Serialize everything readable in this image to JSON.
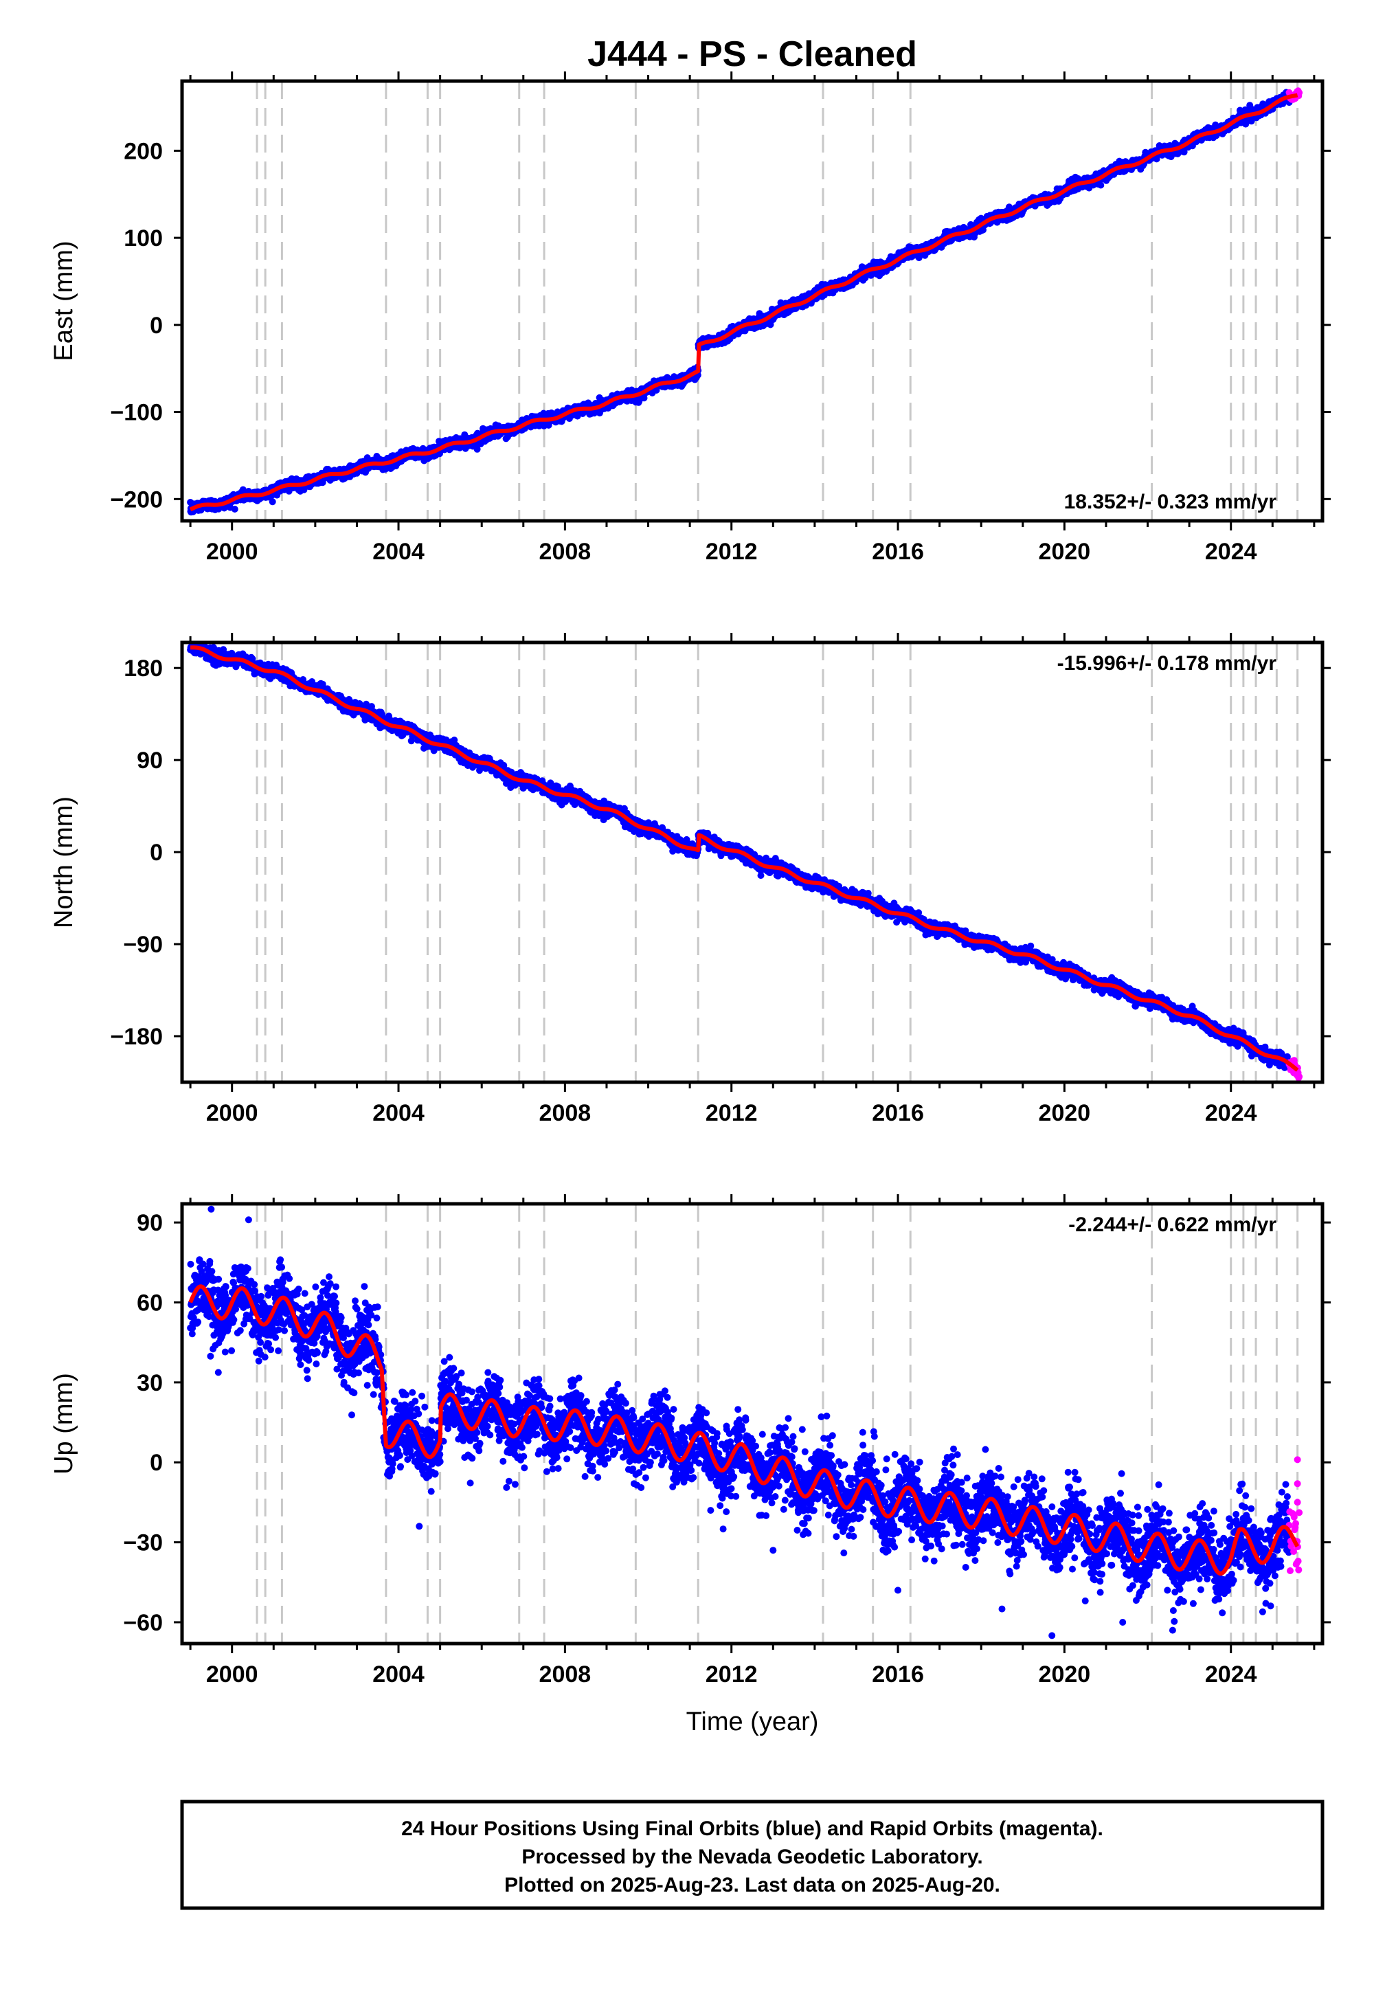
{
  "title": "J444  - PS - Cleaned",
  "colors": {
    "final": "#0000ff",
    "rapid": "#ff00ff",
    "model": "#ff0000",
    "event": "#c8c8c8"
  },
  "chart_data": {
    "type": "scatter",
    "xlim": [
      1998.8,
      2026.2
    ],
    "x_ticks": [
      2000,
      2004,
      2008,
      2012,
      2016,
      2020,
      2024
    ],
    "xlabel": "Time (year)",
    "event_lines": [
      2000.6,
      2000.8,
      2001.2,
      2003.7,
      2004.7,
      2005.0,
      2006.9,
      2007.5,
      2009.7,
      2011.2,
      2014.2,
      2015.4,
      2016.3,
      2022.1,
      2024.0,
      2024.3,
      2024.6,
      2025.1,
      2025.6
    ],
    "panels": [
      {
        "name": "East",
        "ylabel": "East (mm)",
        "ylim": [
          -225,
          280
        ],
        "y_ticks": [
          -200,
          -100,
          0,
          100,
          200
        ],
        "rate_label": "18.352+/- 0.323 mm/yr",
        "rate_position": "bottom-right",
        "trend": [
          [
            1999.0,
            -212
          ],
          [
            2001.0,
            -190
          ],
          [
            2003.0,
            -165
          ],
          [
            2005.0,
            -142
          ],
          [
            2007.0,
            -115
          ],
          [
            2009.0,
            -90
          ],
          [
            2011.2,
            -55
          ],
          [
            2011.2,
            -25
          ],
          [
            2013.0,
            12
          ],
          [
            2015.0,
            55
          ],
          [
            2017.0,
            95
          ],
          [
            2019.0,
            135
          ],
          [
            2021.0,
            173
          ],
          [
            2023.0,
            210
          ],
          [
            2025.6,
            265
          ]
        ],
        "scatter_sigma": 3,
        "spikes": [],
        "wiggle": 2,
        "rapid_range": [
          2025.4,
          2025.65
        ]
      },
      {
        "name": "North",
        "ylabel": "North (mm)",
        "ylim": [
          -225,
          205
        ],
        "y_ticks": [
          -180,
          -90,
          0,
          90,
          180
        ],
        "rate_label": "-15.996+/- 0.178 mm/yr",
        "rate_position": "top-right",
        "trend": [
          [
            1999.0,
            200
          ],
          [
            2001.0,
            177
          ],
          [
            2003.0,
            140
          ],
          [
            2005.0,
            105
          ],
          [
            2007.0,
            70
          ],
          [
            2009.0,
            42
          ],
          [
            2011.2,
            0
          ],
          [
            2011.2,
            15
          ],
          [
            2013.0,
            -15
          ],
          [
            2015.0,
            -45
          ],
          [
            2017.0,
            -75
          ],
          [
            2019.0,
            -100
          ],
          [
            2021.0,
            -130
          ],
          [
            2023.0,
            -160
          ],
          [
            2025.6,
            -212
          ]
        ],
        "scatter_sigma": 3,
        "spikes": [],
        "wiggle": 2,
        "rapid_range": [
          2025.4,
          2025.65
        ]
      },
      {
        "name": "Up",
        "ylabel": "Up (mm)",
        "ylim": [
          -68,
          97
        ],
        "y_ticks": [
          -60,
          -30,
          0,
          30,
          60,
          90
        ],
        "rate_label": "-2.244+/- 0.622 mm/yr",
        "rate_position": "top-right",
        "trend": [
          [
            1999.0,
            60
          ],
          [
            2000.0,
            60
          ],
          [
            2001.0,
            57
          ],
          [
            2002.0,
            52
          ],
          [
            2003.0,
            44
          ],
          [
            2003.6,
            38
          ],
          [
            2003.7,
            12
          ],
          [
            2004.5,
            8
          ],
          [
            2005.0,
            8
          ],
          [
            2005.0,
            20
          ],
          [
            2006.0,
            18
          ],
          [
            2007.0,
            15
          ],
          [
            2008.0,
            14
          ],
          [
            2009.0,
            12
          ],
          [
            2010.0,
            9
          ],
          [
            2011.0,
            6
          ],
          [
            2012.0,
            2
          ],
          [
            2013.0,
            -3
          ],
          [
            2014.0,
            -8
          ],
          [
            2015.0,
            -12
          ],
          [
            2016.0,
            -15
          ],
          [
            2017.0,
            -17
          ],
          [
            2018.0,
            -19
          ],
          [
            2019.0,
            -22
          ],
          [
            2020.0,
            -25
          ],
          [
            2021.0,
            -28
          ],
          [
            2022.0,
            -32
          ],
          [
            2023.0,
            -35
          ],
          [
            2024.0,
            -36
          ],
          [
            2024.2,
            -31
          ],
          [
            2025.0,
            -32
          ],
          [
            2025.6,
            -28
          ]
        ],
        "scatter_sigma": 6.5,
        "spikes": [
          [
            1999.5,
            95
          ],
          [
            2000.4,
            91
          ],
          [
            2004.5,
            -24
          ],
          [
            2011.5,
            -18
          ],
          [
            2011.8,
            -25
          ],
          [
            2013.0,
            -33
          ],
          [
            2014.7,
            -34
          ],
          [
            2016.0,
            -48
          ],
          [
            2018.5,
            -55
          ],
          [
            2019.7,
            -65
          ],
          [
            2020.5,
            -52
          ],
          [
            2021.4,
            -60
          ],
          [
            2022.6,
            -63
          ],
          [
            2025.6,
            1
          ],
          [
            2025.6,
            -8
          ],
          [
            2025.6,
            -15
          ]
        ],
        "wiggle": 6,
        "rapid_range": [
          2025.4,
          2025.65
        ]
      }
    ]
  },
  "footer": {
    "line1": "24 Hour Positions Using Final Orbits (blue) and Rapid Orbits (magenta).",
    "line2": "Processed by the Nevada Geodetic Laboratory.",
    "line3": "Plotted on 2025-Aug-23. Last data on 2025-Aug-20."
  }
}
